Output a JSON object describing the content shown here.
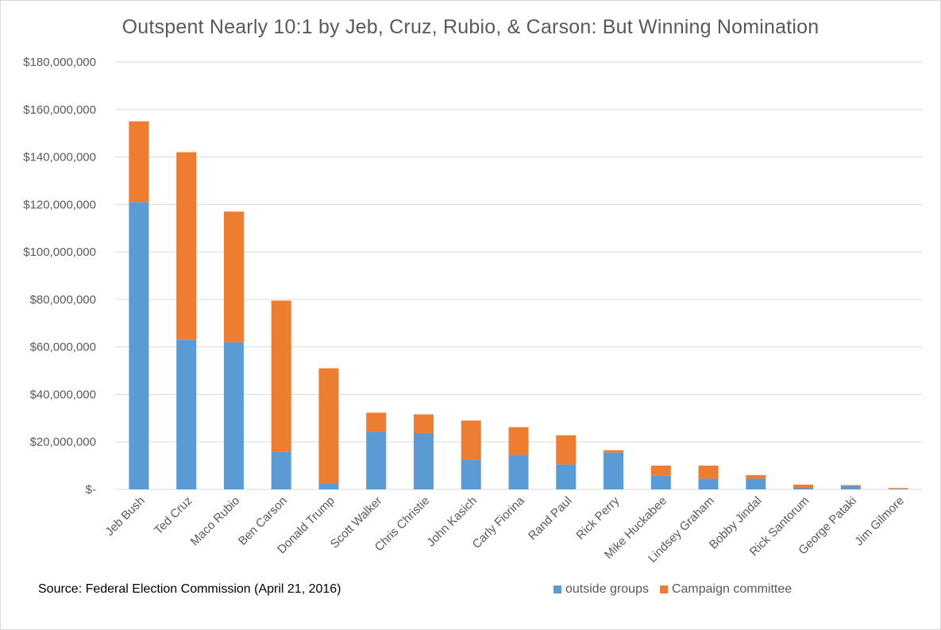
{
  "colors": {
    "outside": "#5b9bd5",
    "campaign": "#ed7d31",
    "grid": "#d9d9d9",
    "text": "#595959"
  },
  "source": "Source: Federal Election Commission (April 21, 2016)",
  "chart_data": {
    "type": "bar",
    "stacked": true,
    "title": "Outspent Nearly 10:1 by Jeb, Cruz, Rubio, & Carson: But Winning Nomination",
    "xlabel": "",
    "ylabel": "",
    "ylim": [
      0,
      180000000
    ],
    "yticks": [
      0,
      20000000,
      40000000,
      60000000,
      80000000,
      100000000,
      120000000,
      140000000,
      160000000,
      180000000
    ],
    "ytick_labels": [
      "$-",
      "$20,000,000",
      "$40,000,000",
      "$60,000,000",
      "$80,000,000",
      "$100,000,000",
      "$120,000,000",
      "$140,000,000",
      "$160,000,000",
      "$180,000,000"
    ],
    "grid": true,
    "legend_position": "bottom-right",
    "categories": [
      "Jeb Bush",
      "Ted Cruz",
      "Maco Rubio",
      "Ben Carson",
      "Donald Trump",
      "Scott Walker",
      "Chris Christie",
      "John Kasich",
      "Carly Fiorina",
      "Rand Paul",
      "Rick Perry",
      "Mike Huckabee",
      "Lindsey Graham",
      "Bobby Jindal",
      "Rick Santorum",
      "George Pataki",
      "Jim Gilmore"
    ],
    "series": [
      {
        "name": "outside groups",
        "values": [
          121000000,
          63000000,
          62000000,
          16000000,
          2500000,
          24300000,
          23600000,
          12500000,
          14500000,
          10500000,
          15500000,
          5800000,
          4500000,
          4500000,
          500000,
          1500000,
          150000
        ]
      },
      {
        "name": "Campaign committee",
        "values": [
          34000000,
          79000000,
          55000000,
          63500000,
          48500000,
          8000000,
          8000000,
          16500000,
          11700000,
          12300000,
          1000000,
          4200000,
          5500000,
          1500000,
          1500000,
          300000,
          400000
        ]
      }
    ]
  }
}
